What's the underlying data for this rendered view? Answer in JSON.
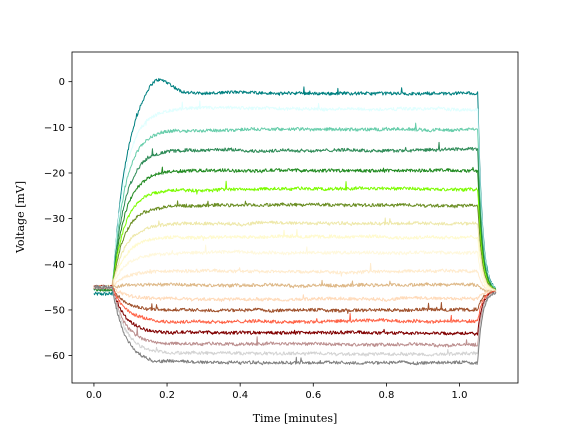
{
  "chart_data": {
    "type": "line",
    "title": "",
    "xlabel": "Time [minutes]",
    "ylabel": "Voltage [mV]",
    "xlim": [
      -0.06,
      1.16
    ],
    "ylim": [
      -66,
      6.5
    ],
    "x_ticks": [
      0.0,
      0.2,
      0.4,
      0.6,
      0.8,
      1.0
    ],
    "x_tick_labels": [
      "0.0",
      "0.2",
      "0.4",
      "0.6",
      "0.8",
      "1.0"
    ],
    "y_ticks": [
      0,
      -10,
      -20,
      -30,
      -40,
      -50,
      -60
    ],
    "y_tick_labels": [
      "0",
      "−10",
      "−20",
      "−30",
      "−40",
      "−50",
      "−60"
    ],
    "grid": false,
    "stimulus": {
      "on_min": 0.05,
      "off_min": 1.05,
      "end_min": 1.1
    },
    "series": [
      {
        "color": "#008080",
        "baseline": -46.5,
        "plateau": -2.5,
        "peak": 1.5,
        "final": -46.0
      },
      {
        "color": "#e0ffff",
        "baseline": -45.5,
        "plateau": -6.0,
        "final": -46.0
      },
      {
        "color": "#66cdaa",
        "baseline": -45.5,
        "plateau": -10.5,
        "final": -46.0
      },
      {
        "color": "#2e8b57",
        "baseline": -45.5,
        "plateau": -15.0,
        "final": -46.0
      },
      {
        "color": "#228b22",
        "baseline": -45.5,
        "plateau": -19.5,
        "final": -46.0
      },
      {
        "color": "#7cfc00",
        "baseline": -45.0,
        "plateau": -23.5,
        "final": -46.0
      },
      {
        "color": "#6b8e23",
        "baseline": -45.0,
        "plateau": -27.0,
        "final": -46.0
      },
      {
        "color": "#eee8aa",
        "baseline": -45.0,
        "plateau": -31.0,
        "final": -46.0
      },
      {
        "color": "#fffacd",
        "baseline": -45.0,
        "plateau": -34.0,
        "final": -46.0
      },
      {
        "color": "#fff8dc",
        "baseline": -45.0,
        "plateau": -37.5,
        "final": -46.0
      },
      {
        "color": "#ffebcd",
        "baseline": -45.0,
        "plateau": -41.5,
        "final": -46.0
      },
      {
        "color": "#deb887",
        "baseline": -45.0,
        "plateau": -44.5,
        "final": -46.0
      },
      {
        "color": "#ffdab9",
        "baseline": -45.0,
        "plateau": -47.5,
        "final": -46.0
      },
      {
        "color": "#a0522d",
        "baseline": -45.0,
        "plateau": -50.0,
        "final": -46.0
      },
      {
        "color": "#ff6347",
        "baseline": -45.0,
        "plateau": -52.5,
        "final": -46.0
      },
      {
        "color": "#800000",
        "baseline": -45.0,
        "plateau": -55.0,
        "final": -46.0
      },
      {
        "color": "#bc8f8f",
        "baseline": -45.0,
        "plateau": -57.5,
        "final": -46.0
      },
      {
        "color": "#d3d3d3",
        "baseline": -45.0,
        "plateau": -59.5,
        "final": -46.0
      },
      {
        "color": "#808080",
        "baseline": -45.0,
        "plateau": -61.5,
        "final": -46.0
      }
    ]
  }
}
